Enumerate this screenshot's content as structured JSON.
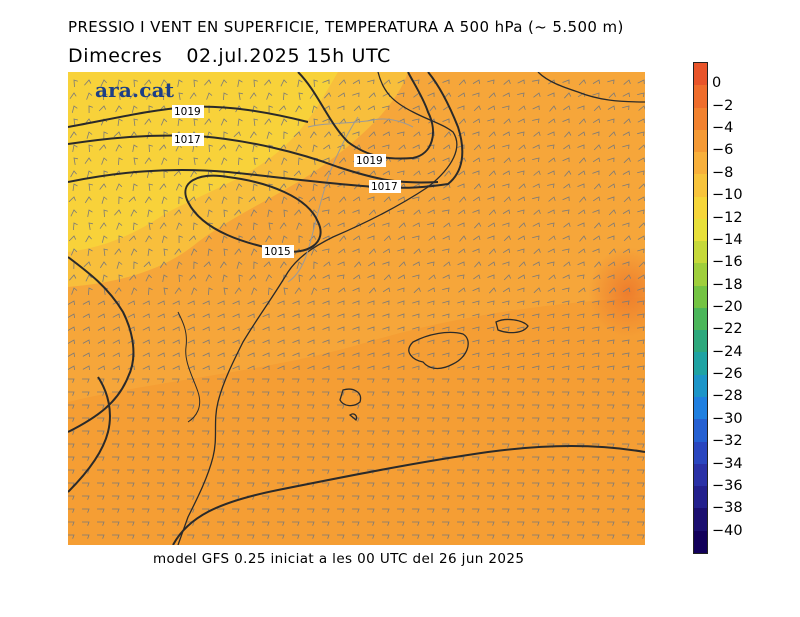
{
  "header": {
    "title": "PRESSIO I VENT EN SUPERFICIE, TEMPERATURA A 500 hPa (~ 5.500 m)",
    "day": "Dimecres",
    "datetime": "02.jul.2025  15h  UTC"
  },
  "map": {
    "logo": "ara.cat",
    "isobars": [
      {
        "label": "1019"
      },
      {
        "label": "1017"
      },
      {
        "label": "1019"
      },
      {
        "label": "1017"
      },
      {
        "label": "1015"
      }
    ],
    "colors": {
      "warm": "#f4a13a",
      "mid": "#f8b63e",
      "cool": "#f8d23a",
      "hot": "#ef8a2e",
      "land_outline": "#2a2a2a",
      "isobar": "#2a2a2a",
      "barb": "#7a7a7a"
    }
  },
  "footer": {
    "text": "model GFS 0.25 iniciat a les 00 UTC del 26 jun 2025"
  },
  "colorbar": {
    "labels": [
      "0",
      "−2",
      "−4",
      "−6",
      "−8",
      "−10",
      "−12",
      "−14",
      "−16",
      "−18",
      "−20",
      "−22",
      "−24",
      "−26",
      "−28",
      "−30",
      "−32",
      "−34",
      "−36",
      "−38",
      "−40"
    ],
    "colors": [
      "#e8542a",
      "#ef6d2c",
      "#f2822f",
      "#f59a35",
      "#f8b03b",
      "#f8c43c",
      "#f6d63a",
      "#e8e03a",
      "#c6d93a",
      "#9fcf3c",
      "#74c443",
      "#4bb65a",
      "#2da87c",
      "#1fa3a3",
      "#1c95c8",
      "#1f7fe0",
      "#2560d2",
      "#2a46bf",
      "#2a31a6",
      "#23208d",
      "#1b0f70",
      "#12005a"
    ]
  }
}
